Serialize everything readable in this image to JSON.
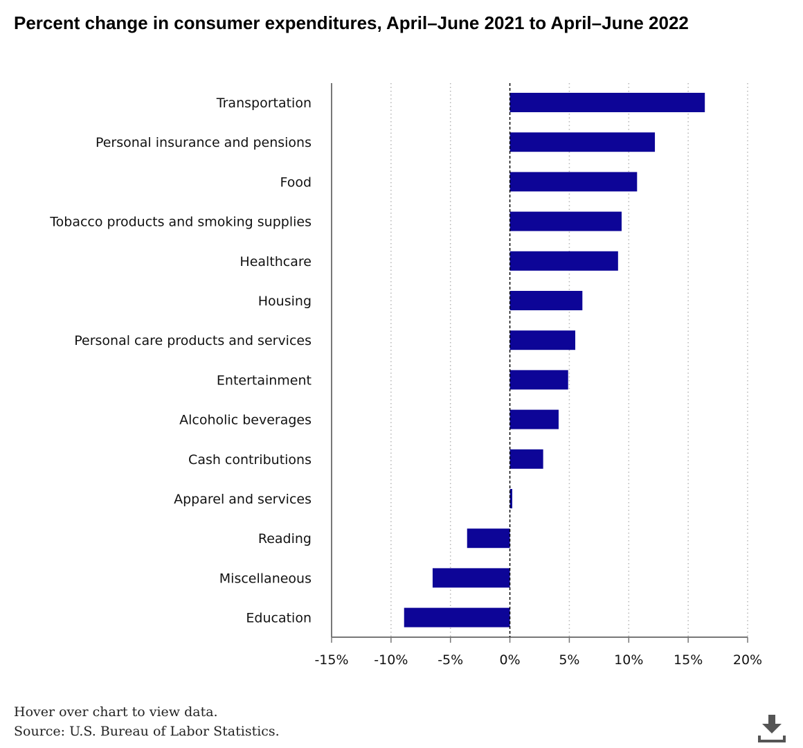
{
  "chart_data": {
    "type": "bar",
    "orientation": "horizontal",
    "title": "Percent change in consumer expenditures, April–June 2021 to April–June 2022",
    "categories": [
      "Transportation",
      "Personal insurance and pensions",
      "Food",
      "Tobacco products and smoking supplies",
      "Healthcare",
      "Housing",
      "Personal care products and services",
      "Entertainment",
      "Alcoholic beverages",
      "Cash contributions",
      "Apparel and services",
      "Reading",
      "Miscellaneous",
      "Education"
    ],
    "values": [
      16.4,
      12.2,
      10.7,
      9.4,
      9.1,
      6.1,
      5.5,
      4.9,
      4.1,
      2.8,
      0.2,
      -3.6,
      -6.5,
      -8.9
    ],
    "xlim": [
      -15,
      20
    ],
    "xticks": [
      -15,
      -10,
      -5,
      0,
      5,
      10,
      15,
      20
    ],
    "xtick_labels": [
      "-15%",
      "-10%",
      "-5%",
      "0%",
      "5%",
      "10%",
      "15%",
      "20%"
    ],
    "xlabel": "",
    "ylabel": "",
    "grid": "vertical dotted",
    "bar_color": "#0d0597"
  },
  "footer": {
    "hover_note": "Hover over chart to view data.",
    "source": "Source: U.S. Bureau of Labor Statistics."
  },
  "icons": {
    "download": "download-icon"
  }
}
